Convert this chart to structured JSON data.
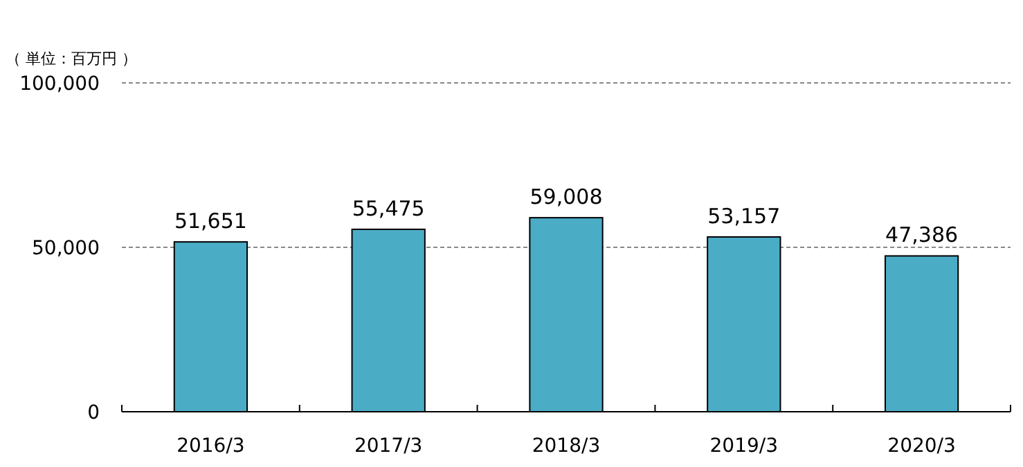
{
  "chart_data": {
    "type": "bar",
    "ylabel": "（ 単位：百万円 ）",
    "categories": [
      "2016/3",
      "2017/3",
      "2018/3",
      "2019/3",
      "2020/3"
    ],
    "values": [
      51651,
      55475,
      59008,
      53157,
      47386
    ],
    "color": "#4bacc6",
    "ylim": [
      0,
      100000
    ],
    "yticks": [
      {
        "value": 0,
        "label": "0"
      },
      {
        "value": 50000,
        "label": "50,000"
      },
      {
        "value": 100000,
        "label": "100,000"
      }
    ],
    "value_labels": [
      "51,651",
      "55,475",
      "59,008",
      "53,157",
      "47,386"
    ],
    "grid": "y"
  }
}
